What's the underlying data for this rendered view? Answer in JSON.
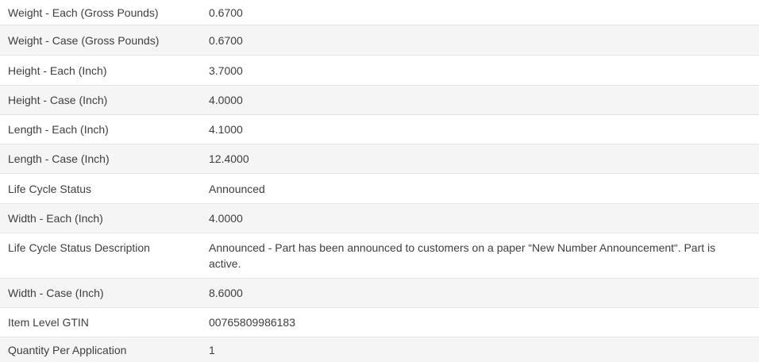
{
  "table": {
    "rows": [
      {
        "label": "Weight - Each (Gross Pounds)",
        "value": "0.6700"
      },
      {
        "label": "Weight - Case (Gross Pounds)",
        "value": "0.6700"
      },
      {
        "label": "Height - Each (Inch)",
        "value": "3.7000"
      },
      {
        "label": "Height - Case (Inch)",
        "value": "4.0000"
      },
      {
        "label": "Length - Each (Inch)",
        "value": "4.1000"
      },
      {
        "label": "Length - Case (Inch)",
        "value": "12.4000"
      },
      {
        "label": "Life Cycle Status",
        "value": "Announced"
      },
      {
        "label": "Width - Each (Inch)",
        "value": "4.0000"
      },
      {
        "label": "Life Cycle Status Description",
        "value": "Announced - Part has been announced to customers on a paper “New Number Announcement“. Part is active."
      },
      {
        "label": "Width - Case (Inch)",
        "value": "8.6000"
      },
      {
        "label": "Item Level GTIN",
        "value": "00765809986183"
      },
      {
        "label": "Quantity Per Application",
        "value": "1"
      }
    ],
    "colors": {
      "stripe": "#f5f5f5",
      "border": "#e6e6e6",
      "text": "#3e3e3e"
    }
  }
}
